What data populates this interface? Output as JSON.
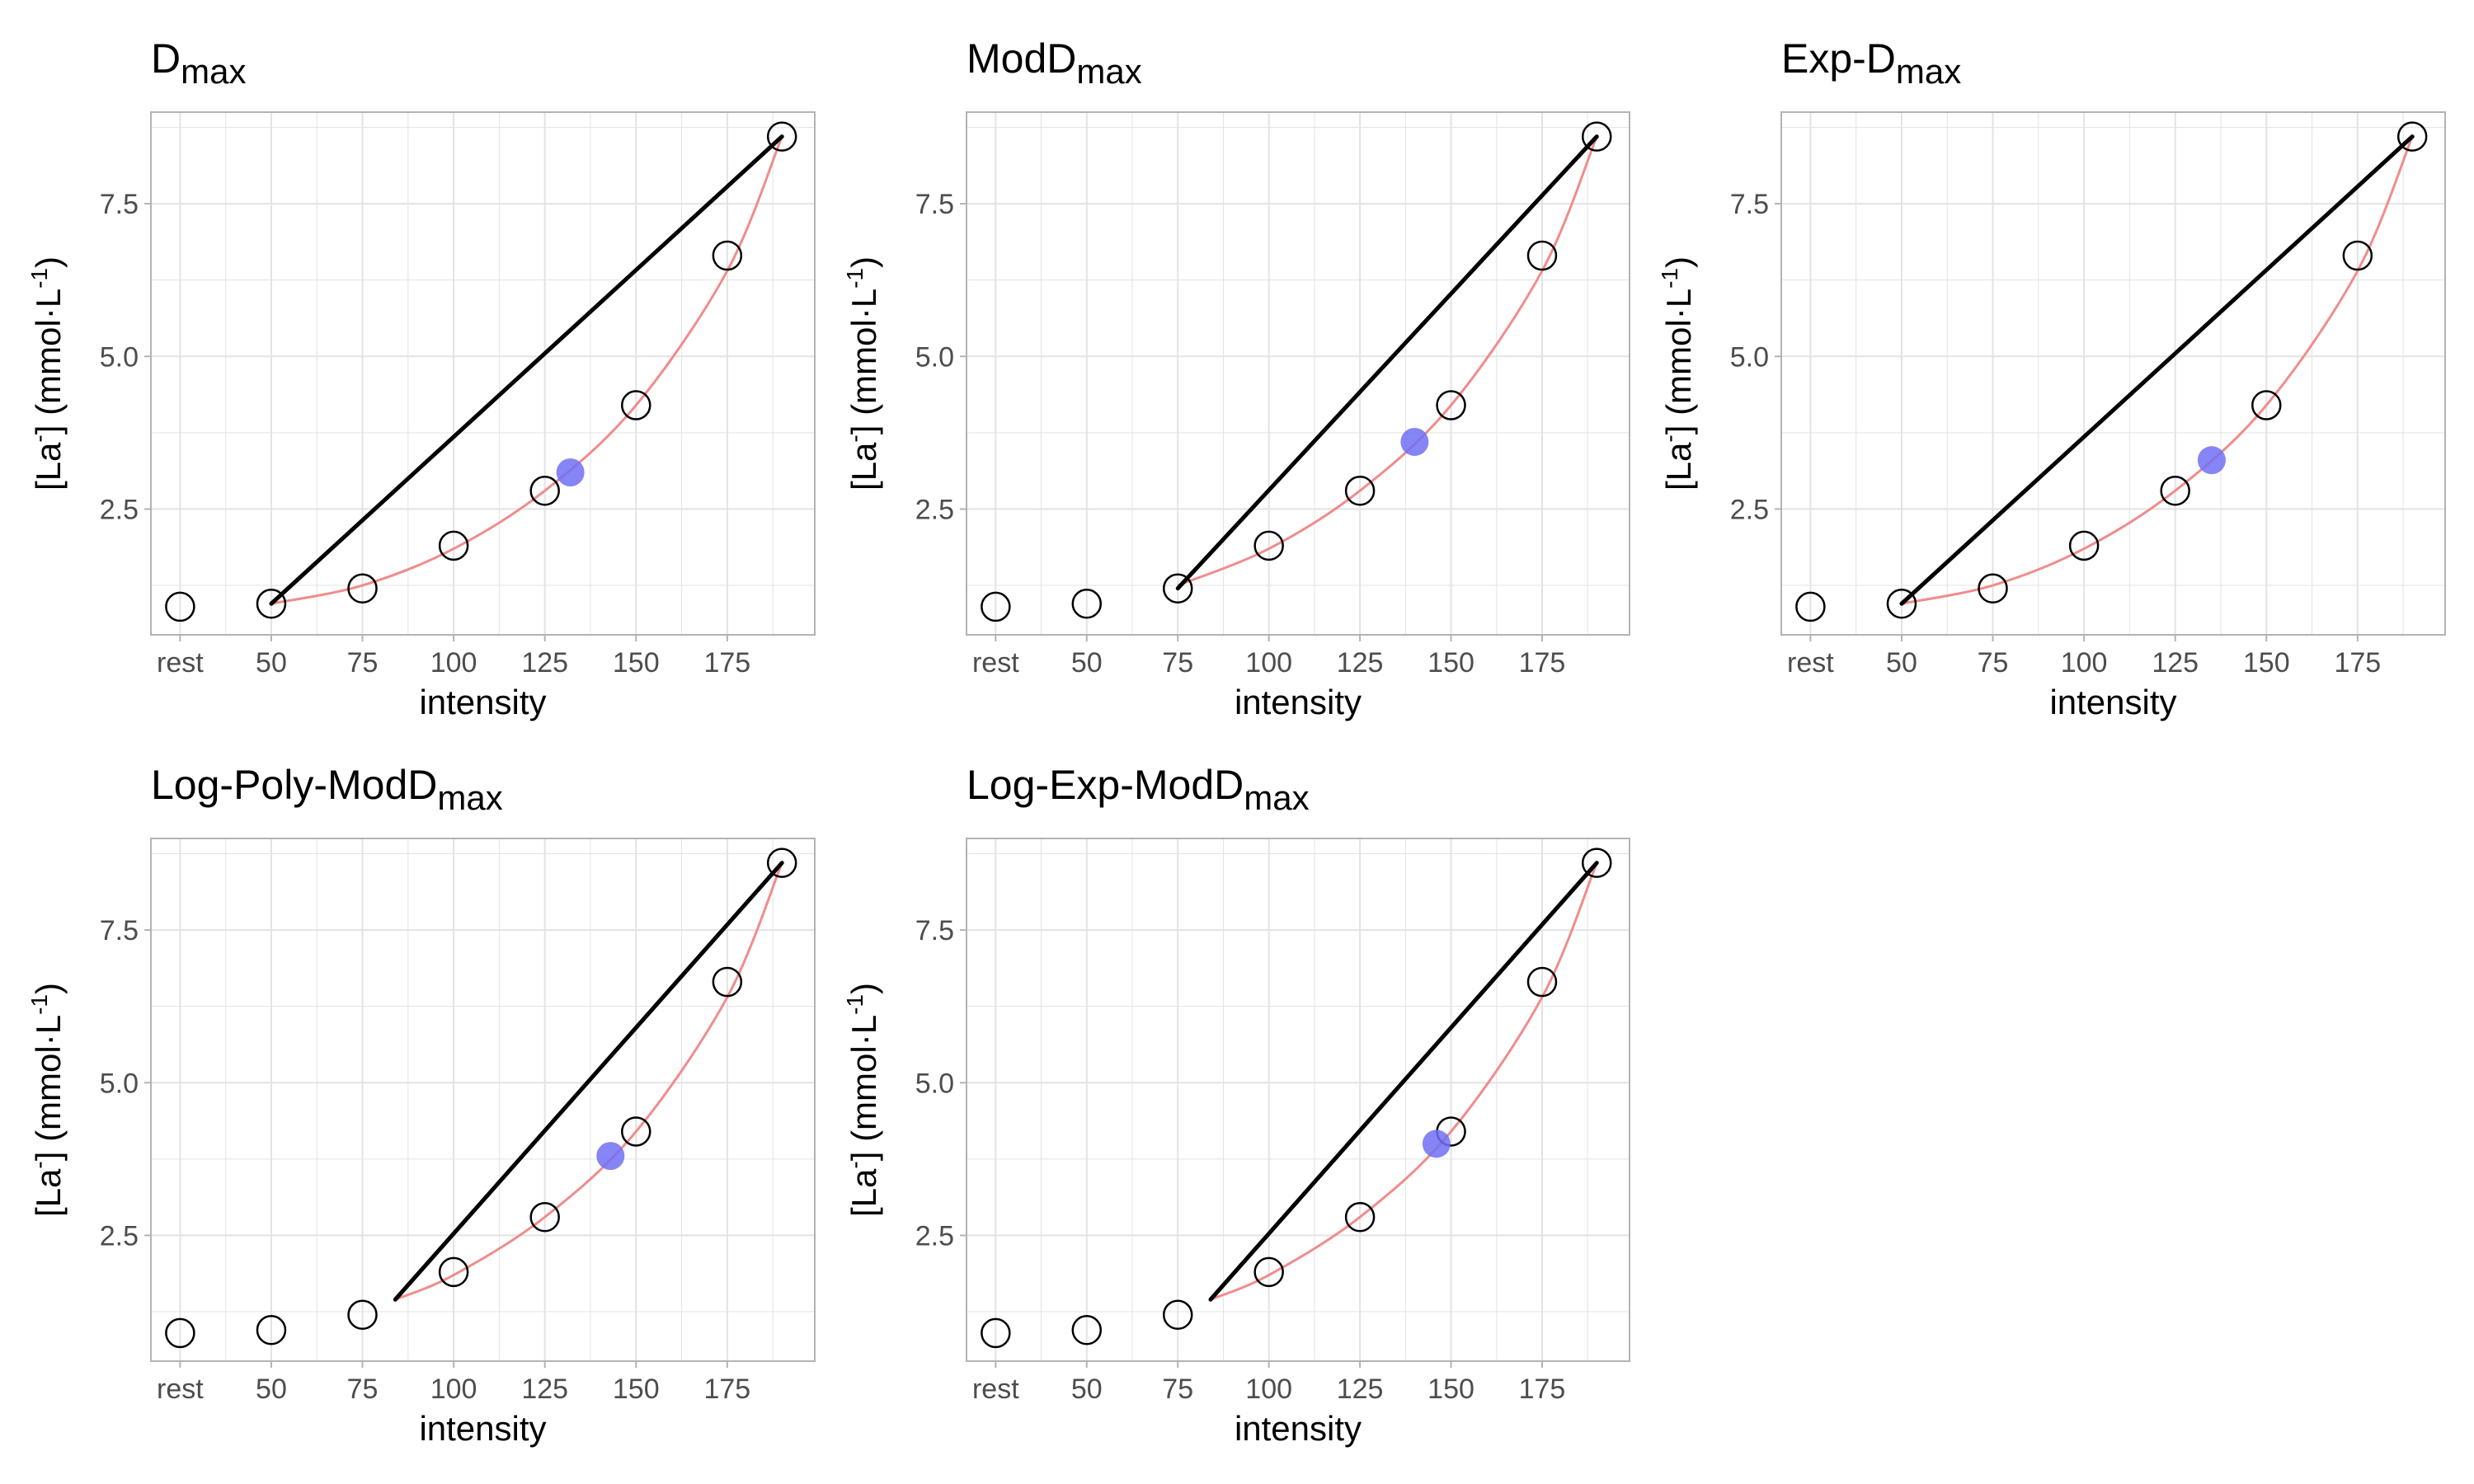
{
  "chart_data": [
    {
      "type": "scatter",
      "title": "D",
      "title_sub": "max",
      "xlabel": "intensity",
      "ylabel": "[La",
      "ylabel_sup": "-",
      "ylabel_rest": "] (mmol·L",
      "ylabel_sup2": "-1",
      "ylabel_end": ")",
      "x_tick_labels": [
        "rest",
        "50",
        "75",
        "100",
        "125",
        "150",
        "175"
      ],
      "x_tick_values": [
        25,
        50,
        75,
        100,
        125,
        150,
        175
      ],
      "y_ticks": [
        2.5,
        5.0,
        7.5
      ],
      "y_tick_labels": [
        "2.5",
        "5.0",
        "7.5"
      ],
      "xlim": [
        17,
        199
      ],
      "ylim": [
        0.44,
        9.0
      ],
      "points": [
        {
          "x": 25,
          "y": 0.9
        },
        {
          "x": 50,
          "y": 0.95
        },
        {
          "x": 75,
          "y": 1.2
        },
        {
          "x": 100,
          "y": 1.9
        },
        {
          "x": 125,
          "y": 2.8
        },
        {
          "x": 150,
          "y": 4.2
        },
        {
          "x": 175,
          "y": 6.65
        },
        {
          "x": 190,
          "y": 8.6
        }
      ],
      "curve": {
        "x_start": 50,
        "x_end": 190,
        "equation_points": [
          [
            50,
            0.95
          ],
          [
            75,
            1.25
          ],
          [
            100,
            1.85
          ],
          [
            125,
            2.8
          ],
          [
            150,
            4.2
          ],
          [
            175,
            6.4
          ],
          [
            190,
            8.6
          ]
        ]
      },
      "line": {
        "x1": 50,
        "y1": 0.95,
        "x2": 190,
        "y2": 8.6
      },
      "threshold": {
        "x": 132,
        "y": 3.1
      }
    },
    {
      "type": "scatter",
      "title": "ModD",
      "title_sub": "max",
      "xlabel": "intensity",
      "ylabel": "[La",
      "ylabel_sup": "-",
      "ylabel_rest": "] (mmol·L",
      "ylabel_sup2": "-1",
      "ylabel_end": ")",
      "x_tick_labels": [
        "rest",
        "50",
        "75",
        "100",
        "125",
        "150",
        "175"
      ],
      "x_tick_values": [
        25,
        50,
        75,
        100,
        125,
        150,
        175
      ],
      "y_ticks": [
        2.5,
        5.0,
        7.5
      ],
      "y_tick_labels": [
        "2.5",
        "5.0",
        "7.5"
      ],
      "xlim": [
        17,
        199
      ],
      "ylim": [
        0.44,
        9.0
      ],
      "points": [
        {
          "x": 25,
          "y": 0.9
        },
        {
          "x": 50,
          "y": 0.95
        },
        {
          "x": 75,
          "y": 1.2
        },
        {
          "x": 100,
          "y": 1.9
        },
        {
          "x": 125,
          "y": 2.8
        },
        {
          "x": 150,
          "y": 4.2
        },
        {
          "x": 175,
          "y": 6.65
        },
        {
          "x": 190,
          "y": 8.6
        }
      ],
      "curve": {
        "x_start": 75,
        "x_end": 190,
        "equation_points": [
          [
            75,
            1.25
          ],
          [
            100,
            1.85
          ],
          [
            125,
            2.8
          ],
          [
            150,
            4.2
          ],
          [
            175,
            6.4
          ],
          [
            190,
            8.6
          ]
        ]
      },
      "line": {
        "x1": 75,
        "y1": 1.2,
        "x2": 190,
        "y2": 8.6
      },
      "threshold": {
        "x": 140,
        "y": 3.6
      }
    },
    {
      "type": "scatter",
      "title": "Exp-D",
      "title_sub": "max",
      "xlabel": "intensity",
      "ylabel": "[La",
      "ylabel_sup": "-",
      "ylabel_rest": "] (mmol·L",
      "ylabel_sup2": "-1",
      "ylabel_end": ")",
      "x_tick_labels": [
        "rest",
        "50",
        "75",
        "100",
        "125",
        "150",
        "175"
      ],
      "x_tick_values": [
        25,
        50,
        75,
        100,
        125,
        150,
        175
      ],
      "y_ticks": [
        2.5,
        5.0,
        7.5
      ],
      "y_tick_labels": [
        "2.5",
        "5.0",
        "7.5"
      ],
      "xlim": [
        17,
        199
      ],
      "ylim": [
        0.44,
        9.0
      ],
      "points": [
        {
          "x": 25,
          "y": 0.9
        },
        {
          "x": 50,
          "y": 0.95
        },
        {
          "x": 75,
          "y": 1.2
        },
        {
          "x": 100,
          "y": 1.9
        },
        {
          "x": 125,
          "y": 2.8
        },
        {
          "x": 150,
          "y": 4.2
        },
        {
          "x": 175,
          "y": 6.65
        },
        {
          "x": 190,
          "y": 8.6
        }
      ],
      "curve": {
        "x_start": 50,
        "x_end": 190,
        "equation_points": [
          [
            50,
            0.95
          ],
          [
            75,
            1.25
          ],
          [
            100,
            1.85
          ],
          [
            125,
            2.8
          ],
          [
            150,
            4.2
          ],
          [
            175,
            6.4
          ],
          [
            190,
            8.6
          ]
        ]
      },
      "line": {
        "x1": 50,
        "y1": 0.95,
        "x2": 190,
        "y2": 8.6
      },
      "threshold": {
        "x": 135,
        "y": 3.3
      }
    },
    {
      "type": "scatter",
      "title": "Log-Poly-ModD",
      "title_sub": "max",
      "xlabel": "intensity",
      "ylabel": "[La",
      "ylabel_sup": "-",
      "ylabel_rest": "] (mmol·L",
      "ylabel_sup2": "-1",
      "ylabel_end": ")",
      "x_tick_labels": [
        "rest",
        "50",
        "75",
        "100",
        "125",
        "150",
        "175"
      ],
      "x_tick_values": [
        25,
        50,
        75,
        100,
        125,
        150,
        175
      ],
      "y_ticks": [
        2.5,
        5.0,
        7.5
      ],
      "y_tick_labels": [
        "2.5",
        "5.0",
        "7.5"
      ],
      "xlim": [
        17,
        199
      ],
      "ylim": [
        0.44,
        9.0
      ],
      "points": [
        {
          "x": 25,
          "y": 0.9
        },
        {
          "x": 50,
          "y": 0.95
        },
        {
          "x": 75,
          "y": 1.2
        },
        {
          "x": 100,
          "y": 1.9
        },
        {
          "x": 125,
          "y": 2.8
        },
        {
          "x": 150,
          "y": 4.2
        },
        {
          "x": 175,
          "y": 6.65
        },
        {
          "x": 190,
          "y": 8.6
        }
      ],
      "curve": {
        "x_start": 84,
        "x_end": 190,
        "equation_points": [
          [
            84,
            1.45
          ],
          [
            100,
            1.85
          ],
          [
            125,
            2.8
          ],
          [
            150,
            4.2
          ],
          [
            175,
            6.4
          ],
          [
            190,
            8.6
          ]
        ]
      },
      "line": {
        "x1": 84,
        "y1": 1.45,
        "x2": 190,
        "y2": 8.6
      },
      "threshold": {
        "x": 143,
        "y": 3.8
      }
    },
    {
      "type": "scatter",
      "title": "Log-Exp-ModD",
      "title_sub": "max",
      "xlabel": "intensity",
      "ylabel": "[La",
      "ylabel_sup": "-",
      "ylabel_rest": "] (mmol·L",
      "ylabel_sup2": "-1",
      "ylabel_end": ")",
      "x_tick_labels": [
        "rest",
        "50",
        "75",
        "100",
        "125",
        "150",
        "175"
      ],
      "x_tick_values": [
        25,
        50,
        75,
        100,
        125,
        150,
        175
      ],
      "y_ticks": [
        2.5,
        5.0,
        7.5
      ],
      "y_tick_labels": [
        "2.5",
        "5.0",
        "7.5"
      ],
      "xlim": [
        17,
        199
      ],
      "ylim": [
        0.44,
        9.0
      ],
      "points": [
        {
          "x": 25,
          "y": 0.9
        },
        {
          "x": 50,
          "y": 0.95
        },
        {
          "x": 75,
          "y": 1.2
        },
        {
          "x": 100,
          "y": 1.9
        },
        {
          "x": 125,
          "y": 2.8
        },
        {
          "x": 150,
          "y": 4.2
        },
        {
          "x": 175,
          "y": 6.65
        },
        {
          "x": 190,
          "y": 8.6
        }
      ],
      "curve": {
        "x_start": 84,
        "x_end": 190,
        "equation_points": [
          [
            84,
            1.45
          ],
          [
            100,
            1.85
          ],
          [
            125,
            2.8
          ],
          [
            150,
            4.2
          ],
          [
            175,
            6.4
          ],
          [
            190,
            8.6
          ]
        ]
      },
      "line": {
        "x1": 84,
        "y1": 1.45,
        "x2": 190,
        "y2": 8.6
      },
      "threshold": {
        "x": 146,
        "y": 4.0
      }
    }
  ],
  "colors": {
    "grid": "#e3e3e3",
    "panel_border": "#b3b3b3",
    "curve": "#f08c8c",
    "line": "#000000",
    "threshold": "#7070f5",
    "point_stroke": "#000000",
    "tick_text": "#4d4d4d",
    "text": "#000000"
  }
}
